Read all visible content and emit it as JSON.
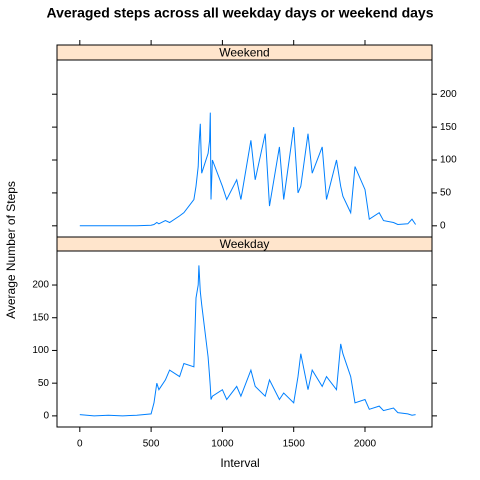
{
  "chart_data": {
    "type": "line",
    "title": "Averaged steps across all weekday days or weekend days",
    "x_label": "Interval",
    "y_label": "Average Number of Steps",
    "x": [
      0,
      100,
      200,
      300,
      400,
      500,
      520,
      540,
      555,
      600,
      630,
      700,
      730,
      800,
      815,
      830,
      835,
      845,
      855,
      900,
      910,
      915,
      920,
      930,
      1000,
      1030,
      1100,
      1130,
      1200,
      1230,
      1300,
      1330,
      1400,
      1430,
      1500,
      1530,
      1550,
      1600,
      1630,
      1700,
      1730,
      1800,
      1830,
      1845,
      1900,
      1930,
      2000,
      2030,
      2100,
      2130,
      2200,
      2230,
      2300,
      2330,
      2355
    ],
    "series": [
      {
        "name": "Weekend",
        "color": "#0080ff",
        "values": [
          0,
          0,
          0,
          0,
          0,
          1,
          2,
          5,
          3,
          8,
          5,
          15,
          20,
          40,
          60,
          90,
          120,
          155,
          80,
          110,
          130,
          172,
          40,
          100,
          60,
          40,
          70,
          40,
          130,
          70,
          140,
          30,
          120,
          40,
          150,
          50,
          60,
          140,
          80,
          120,
          40,
          100,
          60,
          45,
          20,
          90,
          55,
          10,
          20,
          8,
          5,
          2,
          3,
          10,
          2
        ]
      },
      {
        "name": "Weekday",
        "color": "#0080ff",
        "values": [
          2,
          0,
          1,
          0,
          1,
          3,
          20,
          50,
          40,
          55,
          70,
          60,
          80,
          75,
          180,
          200,
          230,
          190,
          170,
          90,
          60,
          45,
          25,
          30,
          40,
          25,
          45,
          30,
          70,
          45,
          30,
          55,
          25,
          35,
          20,
          60,
          95,
          40,
          70,
          45,
          60,
          40,
          110,
          95,
          60,
          20,
          25,
          10,
          15,
          8,
          12,
          5,
          3,
          1,
          2
        ]
      }
    ],
    "strip_color": "#ffe5cc",
    "xlim": [
      -160,
      2470
    ],
    "xticks": [
      0,
      500,
      1000,
      1500,
      2000
    ],
    "ylim": [
      -17,
      252
    ],
    "yticks": [
      0,
      50,
      100,
      150,
      200
    ]
  }
}
